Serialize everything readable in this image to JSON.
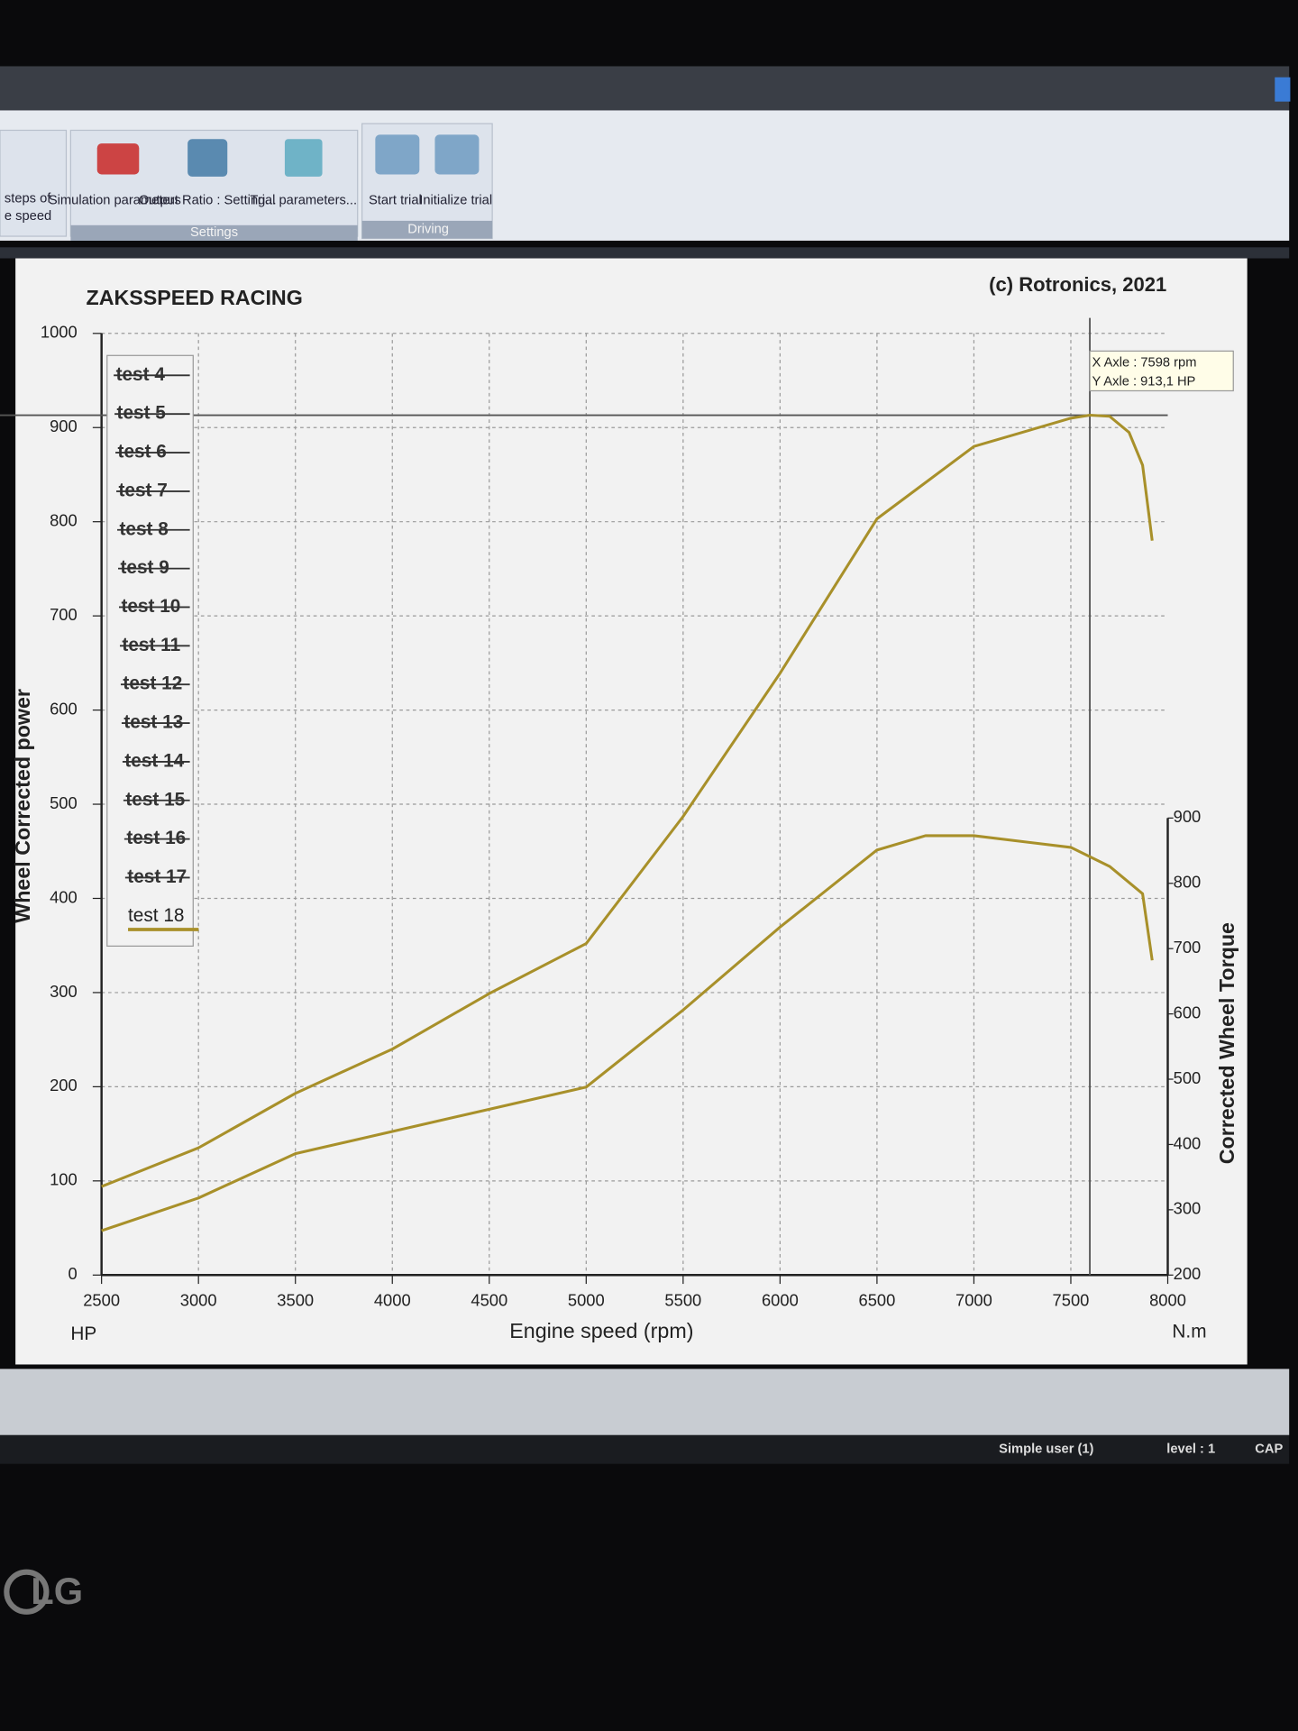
{
  "toolbar": {
    "groups": [
      {
        "label": "Settings",
        "buttons": [
          "Simulation parameters",
          "Output Ratio : Setting...",
          "Trial parameters..."
        ]
      },
      {
        "label": "Driving",
        "buttons": [
          "Start trial",
          "Initialize trial"
        ]
      }
    ],
    "partial_button": [
      "steps of",
      "e speed"
    ]
  },
  "status_bar": [
    "Simple user (1)",
    "level : 1",
    "CAP"
  ],
  "monitor_brand": "LG",
  "chart_data": {
    "type": "line",
    "title": "ZAKSSPEED RACING",
    "copyright": "(c) Rotronics, 2021",
    "x_label": "Engine speed (rpm)",
    "y_label": "Wheel Corrected power",
    "y_unit": "HP",
    "y2_label": "Corrected Wheel Torque",
    "y2_unit": "N.m",
    "xlim": [
      2500,
      8000
    ],
    "xticks": [
      2500,
      3000,
      3500,
      4000,
      4500,
      5000,
      5500,
      6000,
      6500,
      7000,
      7500,
      8000
    ],
    "ylim": [
      0,
      1000
    ],
    "yticks": [
      0,
      100,
      200,
      300,
      400,
      500,
      600,
      700,
      800,
      900,
      1000
    ],
    "y2lim": [
      200,
      900
    ],
    "y2ticks": [
      200,
      300,
      400,
      500,
      600,
      700,
      800,
      900
    ],
    "grid": true,
    "legend": [
      {
        "label": "test 4",
        "hidden": true
      },
      {
        "label": "test 5",
        "hidden": true
      },
      {
        "label": "test 6",
        "hidden": true
      },
      {
        "label": "test 7",
        "hidden": true
      },
      {
        "label": "test 8",
        "hidden": true
      },
      {
        "label": "test 9",
        "hidden": true
      },
      {
        "label": "test 10",
        "hidden": true
      },
      {
        "label": "test 11",
        "hidden": true
      },
      {
        "label": "test 12",
        "hidden": true
      },
      {
        "label": "test 13",
        "hidden": true
      },
      {
        "label": "test 14",
        "hidden": true
      },
      {
        "label": "test 15",
        "hidden": true
      },
      {
        "label": "test 16",
        "hidden": true
      },
      {
        "label": "test 17",
        "hidden": true
      }
    ],
    "series": [
      {
        "name": "test 18",
        "color": "#a8902a",
        "x": [
          2500,
          3000,
          3500,
          4000,
          4500,
          5000,
          5500,
          6000,
          6500,
          7000,
          7500,
          7598,
          7700,
          7800,
          7870,
          7920
        ],
        "values": [
          94,
          135,
          193,
          240,
          299,
          352,
          487,
          639,
          803,
          880,
          910,
          913.1,
          912,
          895,
          860,
          780
        ]
      },
      {
        "color": "#a8902a",
        "axis": "y2",
        "x": [
          2500,
          3000,
          3500,
          4000,
          4500,
          5000,
          5500,
          6000,
          6500,
          6750,
          7000,
          7500,
          7700,
          7870,
          7920
        ],
        "values": [
          268,
          318,
          386,
          420,
          454,
          488,
          606,
          733,
          851,
          873,
          873,
          855,
          826,
          784,
          682
        ]
      }
    ],
    "cursor": {
      "x": 7598,
      "y": 913.1,
      "x_text": "X Axle : 7598 rpm",
      "y_text": "Y Axle : 913,1 HP"
    }
  }
}
